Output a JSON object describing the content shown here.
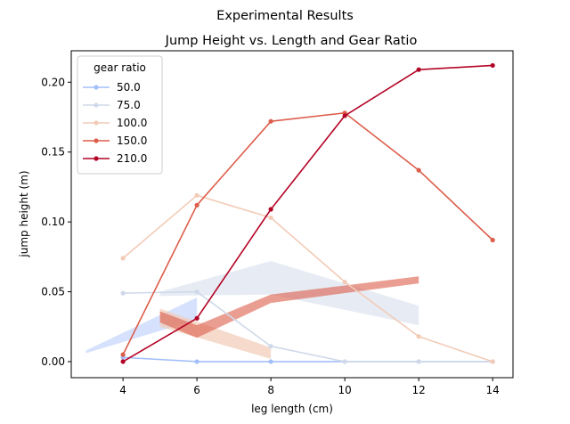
{
  "chart_data": {
    "type": "line",
    "suptitle": "Experimental Results",
    "title": "Jump Height vs. Length and Gear Ratio",
    "xlabel": "leg length (cm)",
    "ylabel": "jump height (m)",
    "xlim": [
      2.6,
      14.55
    ],
    "ylim": [
      -0.0115,
      0.2225
    ],
    "xticks": [
      4,
      6,
      8,
      10,
      12,
      14
    ],
    "xtick_labels": [
      "4",
      "6",
      "8",
      "10",
      "12",
      "14"
    ],
    "yticks": [
      0.0,
      0.05,
      0.1,
      0.15,
      0.2
    ],
    "ytick_labels": [
      "0.00",
      "0.05",
      "0.10",
      "0.15",
      "0.20"
    ],
    "grid": false,
    "legend": {
      "title": "gear ratio",
      "placement": "upper left"
    },
    "series": [
      {
        "name": "50.0",
        "color": "#a3bffa",
        "x": [
          4,
          6,
          8,
          10,
          12,
          14
        ],
        "y": [
          0.003,
          0.0,
          0.0,
          0.0,
          0.0,
          0.0
        ]
      },
      {
        "name": "75.0",
        "color": "#cfd9e9",
        "x": [
          4,
          6,
          8,
          10,
          12,
          14
        ],
        "y": [
          0.049,
          0.05,
          0.011,
          0.0,
          0.0,
          0.0
        ]
      },
      {
        "name": "100.0",
        "color": "#f2cbb7",
        "x": [
          4,
          6,
          8,
          10,
          12,
          14
        ],
        "y": [
          0.074,
          0.119,
          0.103,
          0.057,
          0.018,
          0.0
        ]
      },
      {
        "name": "150.0",
        "color": "#dc5d4a",
        "x": [
          4,
          6,
          8,
          10,
          12,
          14
        ],
        "y": [
          0.005,
          0.112,
          0.172,
          0.178,
          0.137,
          0.087
        ]
      },
      {
        "name": "210.0",
        "color": "#b40426",
        "x": [
          4,
          6,
          8,
          10,
          12,
          14
        ],
        "y": [
          0.0,
          0.031,
          0.109,
          0.176,
          0.209,
          0.212
        ]
      }
    ],
    "bands": [
      {
        "color": "#a3bffa",
        "opacity": 0.45,
        "x": [
          3,
          6
        ],
        "lower": [
          0.006,
          0.03
        ],
        "upper": [
          0.008,
          0.046
        ]
      },
      {
        "color": "#cfd9e9",
        "opacity": 0.5,
        "x": [
          5,
          8,
          12
        ],
        "lower": [
          0.047,
          0.048,
          0.026
        ],
        "upper": [
          0.05,
          0.072,
          0.04
        ]
      },
      {
        "color": "#f2cbb7",
        "opacity": 0.7,
        "x": [
          5,
          8
        ],
        "lower": [
          0.025,
          0.002
        ],
        "upper": [
          0.038,
          0.01
        ]
      },
      {
        "color": "#dc5d4a",
        "opacity": 0.6,
        "x": [
          5,
          6,
          8,
          12
        ],
        "lower": [
          0.028,
          0.017,
          0.042,
          0.056
        ],
        "upper": [
          0.036,
          0.026,
          0.048,
          0.061
        ]
      }
    ]
  }
}
